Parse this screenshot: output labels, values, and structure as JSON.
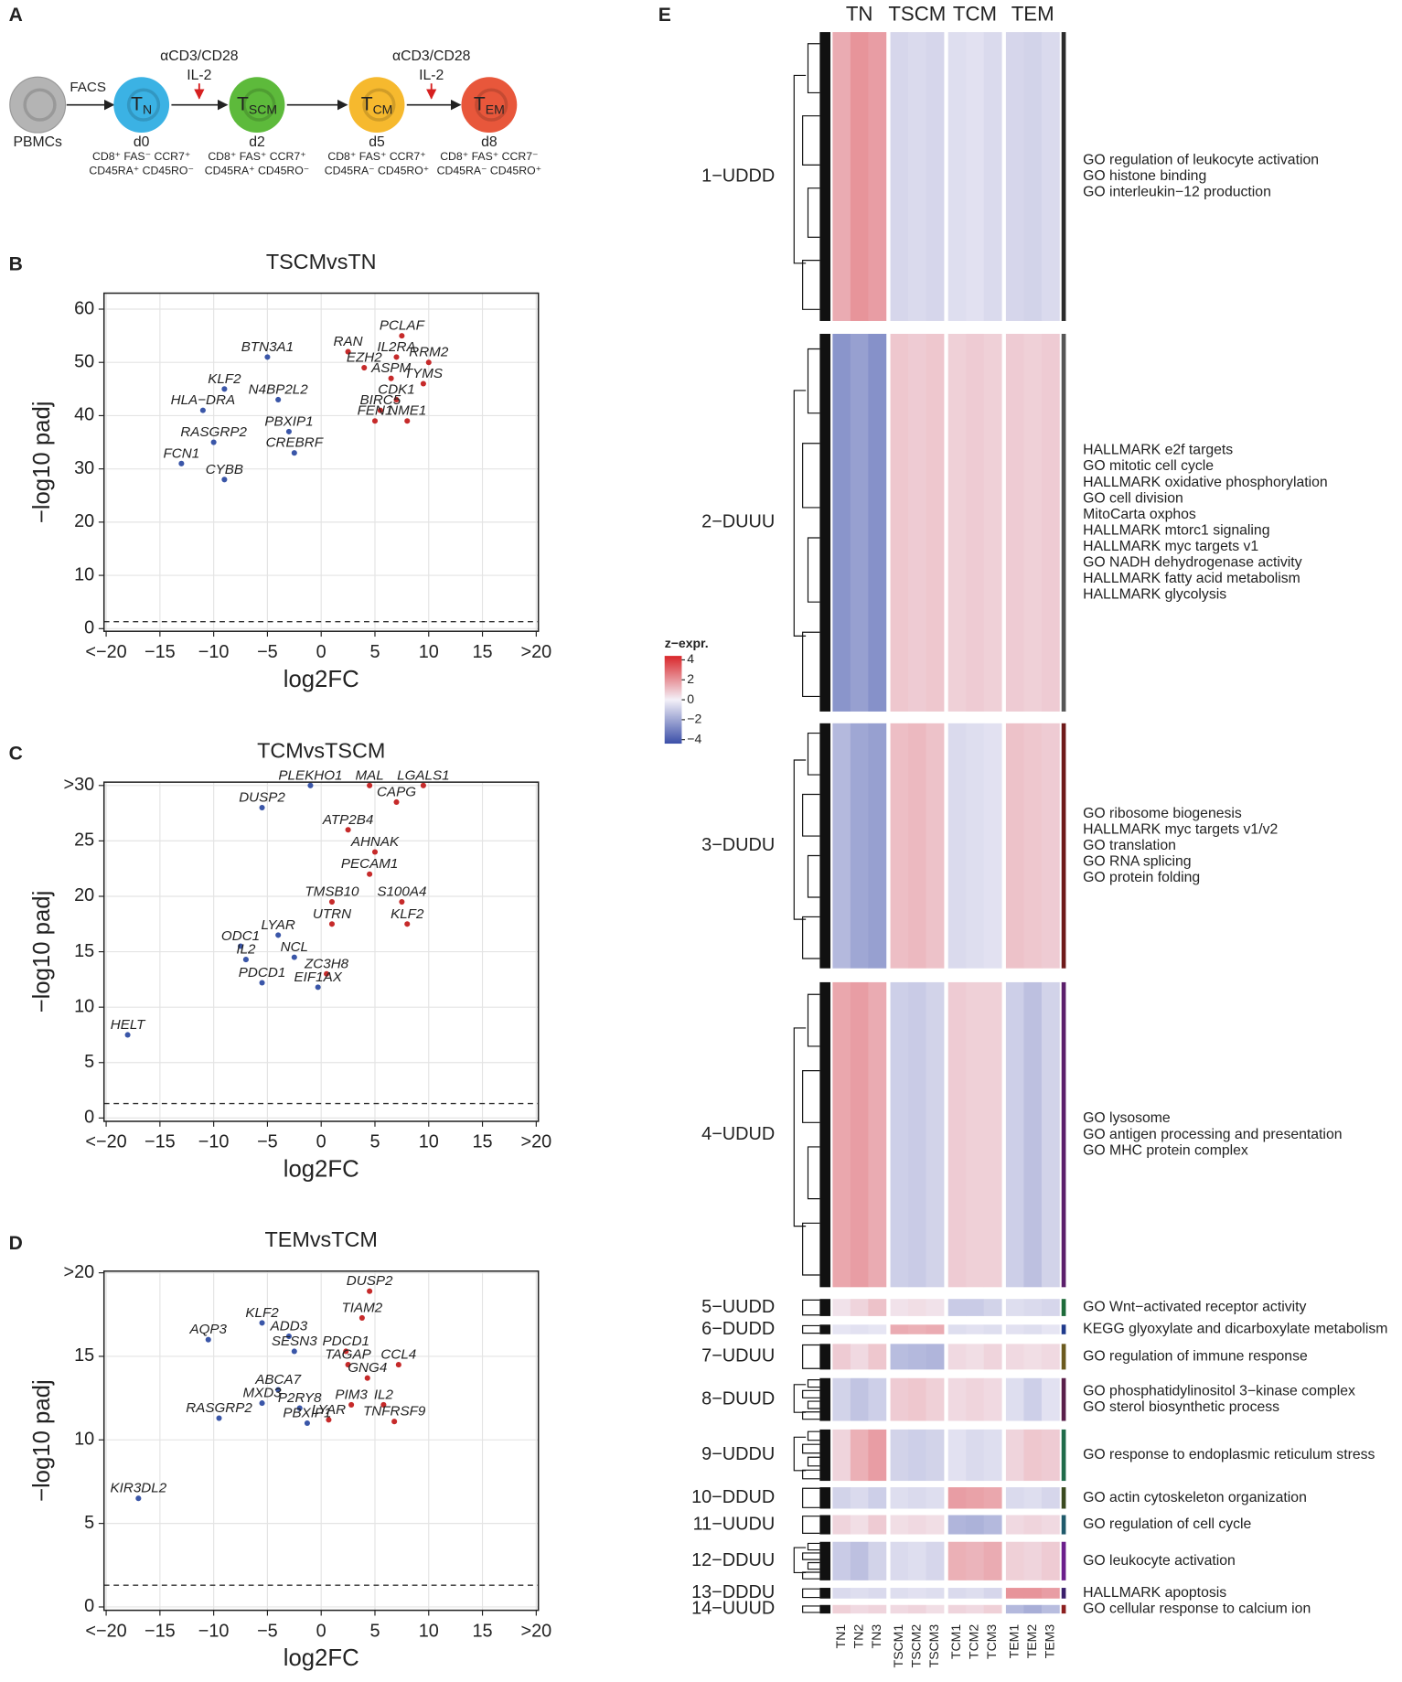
{
  "panels": [
    "A",
    "B",
    "C",
    "D",
    "E"
  ],
  "diagram": {
    "cells": [
      {
        "name": "PBMCs",
        "color": "#b4b4b4"
      },
      {
        "main": "T",
        "sub": "N",
        "day": "d0",
        "markers": [
          "CD8⁺ FAS⁻ CCR7⁺",
          "CD45RA⁺ CD45RO⁻"
        ],
        "color": "#3bb2e4"
      },
      {
        "main": "T",
        "sub": "SCM",
        "day": "d2",
        "markers": [
          "CD8⁺ FAS⁺ CCR7⁺",
          "CD45RA⁺ CD45RO⁻"
        ],
        "color": "#5dba3b"
      },
      {
        "main": "T",
        "sub": "CM",
        "day": "d5",
        "markers": [
          "CD8⁺ FAS⁺ CCR7⁺",
          "CD45RA⁻ CD45RO⁺"
        ],
        "color": "#f6b92e"
      },
      {
        "main": "T",
        "sub": "EM",
        "day": "d8",
        "markers": [
          "CD8⁺ FAS⁺ CCR7⁻",
          "CD45RA⁻ CD45RO⁺"
        ],
        "color": "#e8573b"
      }
    ],
    "sort": "FACS",
    "stimuli": [
      {
        "text": "αCD3/CD28",
        "cytokine": "IL-2"
      },
      {
        "text": "αCD3/CD28",
        "cytokine": "IL-2"
      }
    ]
  },
  "chart_data": [
    {
      "type": "scatter",
      "title": "TSCMvsTN",
      "xlabel": "log2FC",
      "ylabel": "−log10 padj",
      "xlim": [
        -20.2,
        20.2
      ],
      "ylim": [
        -0.5,
        63
      ],
      "xticks": [
        {
          "value": -20,
          "label": "<−20"
        },
        {
          "value": -15,
          "label": "−15"
        },
        {
          "value": -10,
          "label": "−10"
        },
        {
          "value": -5,
          "label": "−5"
        },
        0,
        5,
        10,
        15,
        {
          "value": 20,
          "label": ">20"
        }
      ],
      "yticks": [
        0,
        10,
        20,
        30,
        40,
        50,
        60
      ],
      "grid": true,
      "threshold": 1.3,
      "colors": {
        "up": "#c62a2a",
        "down": "#3a56a8"
      },
      "points": [
        {
          "label": "PCLAF",
          "x": 7.5,
          "y": 55
        },
        {
          "label": "RAN",
          "x": 2.5,
          "y": 52
        },
        {
          "label": "IL2RA",
          "x": 7,
          "y": 51
        },
        {
          "label": "RRM2",
          "x": 10,
          "y": 50
        },
        {
          "label": "EZH2",
          "x": 4,
          "y": 49
        },
        {
          "label": "ASPM",
          "x": 6.5,
          "y": 47
        },
        {
          "label": "TYMS",
          "x": 9.5,
          "y": 46
        },
        {
          "label": "CDK1",
          "x": 7,
          "y": 43
        },
        {
          "label": "BIRC5",
          "x": 5.5,
          "y": 41
        },
        {
          "label": "FEN1",
          "x": 5,
          "y": 39
        },
        {
          "label": "NME1",
          "x": 8,
          "y": 39
        },
        {
          "label": "BTN3A1",
          "x": -5,
          "y": 51
        },
        {
          "label": "KLF2",
          "x": -9,
          "y": 45
        },
        {
          "label": "N4BP2L2",
          "x": -4,
          "y": 43
        },
        {
          "label": "HLA−DRA",
          "x": -11,
          "y": 41
        },
        {
          "label": "RASGRP2",
          "x": -10,
          "y": 35
        },
        {
          "label": "PBXIP1",
          "x": -3,
          "y": 37
        },
        {
          "label": "CREBRF",
          "x": -2.5,
          "y": 33
        },
        {
          "label": "FCN1",
          "x": -13,
          "y": 31
        },
        {
          "label": "CYBB",
          "x": -9,
          "y": 28
        }
      ]
    },
    {
      "type": "scatter",
      "title": "TCMvsTSCM",
      "xlabel": "log2FC",
      "ylabel": "−log10 padj",
      "xlim": [
        -20.2,
        20.2
      ],
      "ylim": [
        -0.3,
        30.3
      ],
      "xticks": [
        {
          "value": -20,
          "label": "<−20"
        },
        {
          "value": -15,
          "label": "−15"
        },
        {
          "value": -10,
          "label": "−10"
        },
        {
          "value": -5,
          "label": "−5"
        },
        0,
        5,
        10,
        15,
        {
          "value": 20,
          "label": ">20"
        }
      ],
      "yticks": [
        0,
        5,
        10,
        15,
        20,
        25,
        {
          "value": 30,
          "label": ">30"
        }
      ],
      "grid": true,
      "threshold": 1.3,
      "colors": {
        "up": "#c62a2a",
        "down": "#3a56a8"
      },
      "points": [
        {
          "label": "PLEKHO1",
          "x": -1,
          "y": 30
        },
        {
          "label": "MAL",
          "x": 4.5,
          "y": 30
        },
        {
          "label": "LGALS1",
          "x": 9.5,
          "y": 30
        },
        {
          "label": "DUSP2",
          "x": -5.5,
          "y": 28
        },
        {
          "label": "CAPG",
          "x": 7,
          "y": 28.5
        },
        {
          "label": "ATP2B4",
          "x": 2.5,
          "y": 26
        },
        {
          "label": "AHNAK",
          "x": 5,
          "y": 24
        },
        {
          "label": "PECAM1",
          "x": 4.5,
          "y": 22
        },
        {
          "label": "TMSB10",
          "x": 1,
          "y": 19.5
        },
        {
          "label": "S100A4",
          "x": 7.5,
          "y": 19.5
        },
        {
          "label": "UTRN",
          "x": 1,
          "y": 17.5
        },
        {
          "label": "KLF2",
          "x": 8,
          "y": 17.5
        },
        {
          "label": "LYAR",
          "x": -4,
          "y": 16.5
        },
        {
          "label": "ODC1",
          "x": -7.5,
          "y": 15.5
        },
        {
          "label": "NCL",
          "x": -2.5,
          "y": 14.5
        },
        {
          "label": "IL2",
          "x": -7,
          "y": 14.3
        },
        {
          "label": "ZC3H8",
          "x": 0.5,
          "y": 13
        },
        {
          "label": "PDCD1",
          "x": -5.5,
          "y": 12.2
        },
        {
          "label": "EIF1AX",
          "x": -0.3,
          "y": 11.8
        },
        {
          "label": "HELT",
          "x": -18,
          "y": 7.5
        }
      ]
    },
    {
      "type": "scatter",
      "title": "TEMvsTCM",
      "xlabel": "log2FC",
      "ylabel": "−log10 padj",
      "xlim": [
        -20.2,
        20.2
      ],
      "ylim": [
        -0.2,
        20.1
      ],
      "xticks": [
        {
          "value": -20,
          "label": "<−20"
        },
        {
          "value": -15,
          "label": "−15"
        },
        {
          "value": -10,
          "label": "−10"
        },
        {
          "value": -5,
          "label": "−5"
        },
        0,
        5,
        10,
        15,
        {
          "value": 20,
          "label": ">20"
        }
      ],
      "yticks": [
        0,
        5,
        10,
        15,
        {
          "value": 20,
          "label": ">20"
        }
      ],
      "grid": true,
      "threshold": 1.3,
      "colors": {
        "up": "#c62a2a",
        "down": "#3a56a8"
      },
      "points": [
        {
          "label": "DUSP2",
          "x": 4.5,
          "y": 18.9
        },
        {
          "label": "TIAM2",
          "x": 3.8,
          "y": 17.3
        },
        {
          "label": "KLF2",
          "x": -5.5,
          "y": 17
        },
        {
          "label": "ADD3",
          "x": -3,
          "y": 16.2
        },
        {
          "label": "AQP3",
          "x": -10.5,
          "y": 16
        },
        {
          "label": "SESN3",
          "x": -2.5,
          "y": 15.3
        },
        {
          "label": "PDCD1",
          "x": 2.3,
          "y": 15.3
        },
        {
          "label": "CCL4",
          "x": 7.2,
          "y": 14.5
        },
        {
          "label": "TAGAP",
          "x": 2.5,
          "y": 14.5
        },
        {
          "label": "GNG4",
          "x": 4.3,
          "y": 13.7
        },
        {
          "label": "ABCA7",
          "x": -4,
          "y": 13
        },
        {
          "label": "MXD3",
          "x": -5.5,
          "y": 12.2
        },
        {
          "label": "P2RY8",
          "x": -2,
          "y": 11.9
        },
        {
          "label": "PIM3",
          "x": 2.8,
          "y": 12.1
        },
        {
          "label": "IL2",
          "x": 5.8,
          "y": 12.1
        },
        {
          "label": "RASGRP2",
          "x": -9.5,
          "y": 11.3
        },
        {
          "label": "PBXIP1",
          "x": -1.3,
          "y": 11
        },
        {
          "label": "LYAR",
          "x": 0.7,
          "y": 11.2
        },
        {
          "label": "TNFRSF9",
          "x": 6.8,
          "y": 11.1
        },
        {
          "label": "KIR3DL2",
          "x": -17,
          "y": 6.5
        }
      ]
    },
    {
      "type": "heatmap",
      "groups": [
        "TN",
        "TSCM",
        "TCM",
        "TEM"
      ],
      "samples": [
        "TN1",
        "TN2",
        "TN3",
        "TSCM1",
        "TSCM2",
        "TSCM3",
        "TCM1",
        "TCM2",
        "TCM3",
        "TEM1",
        "TEM2",
        "TEM3"
      ],
      "colormap": [
        "#3b4fa8",
        "#f3f0f8",
        "#d9262a"
      ],
      "colorbar": {
        "title": "z−expr.",
        "lim": [
          -4.4,
          4.4
        ],
        "ticks": [
          4,
          2,
          0,
          {
            "value": -2,
            "label": "−2"
          },
          {
            "value": -4,
            "label": "−4"
          }
        ]
      },
      "clusters": [
        {
          "name": "1−UDDD",
          "color": "#2b2b2b",
          "terms": [
            "GO regulation of leukocyte activation",
            "GO histone binding",
            "GO interleukin−12 production"
          ],
          "values": [
            1.5,
            2,
            1.8,
            -0.7,
            -0.6,
            -0.7,
            -0.5,
            -0.4,
            -0.6,
            -0.7,
            -0.8,
            -0.6
          ]
        },
        {
          "name": "2−DUUU",
          "color": "#555555",
          "terms": [
            "HALLMARK e2f targets",
            "GO mitotic cell cycle",
            "HALLMARK oxidative phosphorylation",
            "GO cell division",
            "MitoCarta oxphos",
            "HALLMARK mtorc1 signaling",
            "HALLMARK myc targets v1",
            "GO NADH dehydrogenase activity",
            "HALLMARK fatty acid metabolism",
            "HALLMARK glycolysis"
          ],
          "values": [
            -2.5,
            -2.2,
            -2.6,
            0.9,
            0.8,
            0.9,
            0.7,
            0.8,
            0.7,
            0.8,
            0.7,
            0.8
          ]
        },
        {
          "name": "3−DUDU",
          "color": "#6e1a1a",
          "terms": [
            "GO ribosome biogenesis",
            "HALLMARK myc targets v1/v2",
            "GO translation",
            "GO RNA splicing",
            "GO protein folding"
          ],
          "values": [
            -1.5,
            -2,
            -2.2,
            1.1,
            1.2,
            1,
            -0.6,
            -0.5,
            -0.4,
            1,
            0.9,
            0.8
          ]
        },
        {
          "name": "4−UDUD",
          "color": "#5c1f6b",
          "terms": [
            "GO lysosome",
            "GO antigen processing and presentation",
            "GO MHC protein complex"
          ],
          "values": [
            1.6,
            1.8,
            1.5,
            -0.9,
            -1,
            -0.8,
            0.8,
            0.7,
            0.7,
            -0.9,
            -1.3,
            -0.8
          ]
        },
        {
          "name": "5−UUDD",
          "color": "#1e6b3a",
          "terms": [
            "GO Wnt−activated receptor activity"
          ],
          "values": [
            0.3,
            0.6,
            1,
            0.3,
            0.4,
            0.3,
            -1,
            -1,
            -0.8,
            -0.5,
            -0.6,
            -0.7
          ]
        },
        {
          "name": "6−DUDD",
          "color": "#1f3a8c",
          "terms": [
            "KEGG glyoxylate and dicarboxylate metabolism"
          ],
          "values": [
            -0.3,
            -0.4,
            -0.3,
            1.5,
            1.4,
            1.5,
            -0.5,
            -0.4,
            -0.5,
            -0.4,
            -0.5,
            -0.3
          ]
        },
        {
          "name": "7−UDUU",
          "color": "#6b5a1f",
          "terms": [
            "GO regulation of immune response"
          ],
          "values": [
            0.8,
            0.5,
            0.9,
            -1.4,
            -1.5,
            -1.6,
            0.5,
            0.4,
            0.6,
            0.5,
            0.4,
            0.5
          ]
        },
        {
          "name": "8−DUUD",
          "color": "#5a1f4a",
          "terms": [
            "GO phosphatidylinositol 3−kinase complex",
            "GO sterol biosynthetic process"
          ],
          "values": [
            -0.8,
            -1.2,
            -0.9,
            0.8,
            0.9,
            0.7,
            0.5,
            0.6,
            0.5,
            -0.5,
            -0.9,
            -0.4
          ]
        },
        {
          "name": "9−UDDU",
          "color": "#1f6b4a",
          "terms": [
            "GO response to endoplasmic reticulum stress"
          ],
          "values": [
            0.6,
            1.4,
            1.8,
            -0.8,
            -0.9,
            -0.8,
            -0.4,
            -0.6,
            -0.5,
            0.6,
            0.9,
            0.8
          ]
        },
        {
          "name": "10−DDUD",
          "color": "#3a4a1f",
          "terms": [
            "GO actin cytoskeleton organization"
          ],
          "values": [
            -0.8,
            -0.6,
            -0.9,
            -0.5,
            -0.6,
            -0.5,
            1.8,
            1.7,
            1.6,
            -0.6,
            -0.5,
            -0.7
          ]
        },
        {
          "name": "11−UUDU",
          "color": "#1f5a6b",
          "terms": [
            "GO regulation of cell cycle"
          ],
          "values": [
            0.6,
            0.4,
            0.8,
            0.4,
            0.5,
            0.4,
            -1.6,
            -1.7,
            -1.5,
            0.5,
            0.6,
            0.5
          ]
        },
        {
          "name": "12−DDUU",
          "color": "#6b1f8c",
          "terms": [
            "GO leukocyte activation"
          ],
          "values": [
            -1,
            -1.3,
            -0.8,
            -0.6,
            -0.5,
            -0.7,
            1.4,
            1.3,
            1.5,
            0.7,
            0.6,
            0.8
          ]
        },
        {
          "name": "13−DDDU",
          "color": "#3a1f6b",
          "terms": [
            "HALLMARK apoptosis"
          ],
          "values": [
            -0.6,
            -0.5,
            -0.6,
            -0.5,
            -0.4,
            -0.5,
            -0.6,
            -0.5,
            -0.7,
            2,
            2,
            1.8
          ]
        },
        {
          "name": "14−UUUD",
          "color": "#8c1f1f",
          "terms": [
            "GO cellular response to calcium ion"
          ],
          "values": [
            0.7,
            0.5,
            0.6,
            0.5,
            0.6,
            0.4,
            0.6,
            0.5,
            0.7,
            -1.5,
            -1.8,
            -1.4
          ]
        }
      ]
    }
  ]
}
